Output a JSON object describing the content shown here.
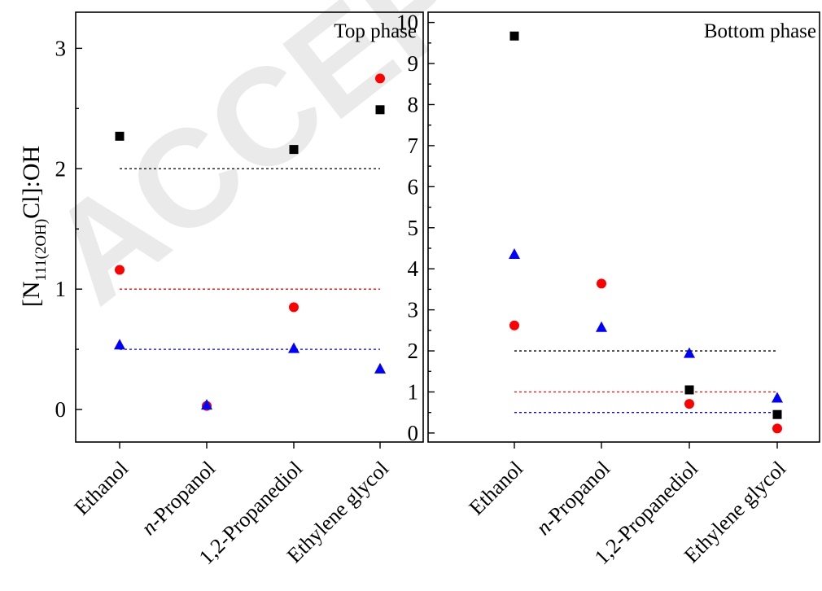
{
  "watermark": "ACCEPTED",
  "ylabel": {
    "pre": "[N",
    "sub": "111(2OH)",
    "post": "Cl]:OH"
  },
  "series_styles": {
    "square": "#000000",
    "circle": "#ff0000",
    "triangle": "#0000ff"
  },
  "reference_lines": [
    {
      "value": 2,
      "color": "#000000"
    },
    {
      "value": 1,
      "color": "#ff0000"
    },
    {
      "value": 0.5,
      "color": "#0000ff"
    }
  ],
  "chart_data": [
    {
      "type": "scatter",
      "title": "Top phase",
      "legend": "none",
      "categories": [
        "Ethanol",
        "n-Propanol",
        "1,2-Propanediol",
        "Ethylene glycol"
      ],
      "ylim": [
        -0.27,
        3.3
      ],
      "yticks": [
        0,
        1,
        2,
        3
      ],
      "series": [
        {
          "marker": "square",
          "values": [
            2.27,
            null,
            2.16,
            2.49
          ]
        },
        {
          "marker": "circle",
          "values": [
            1.16,
            0.03,
            0.85,
            2.75
          ]
        },
        {
          "marker": "triangle",
          "values": [
            0.54,
            0.04,
            0.51,
            0.34
          ]
        }
      ]
    },
    {
      "type": "scatter",
      "title": "Bottom phase",
      "legend": "none",
      "categories": [
        "Ethanol",
        "n-Propanol",
        "1,2-Propanediol",
        "Ethylene glycol"
      ],
      "ylim": [
        -0.22,
        10.25
      ],
      "yticks": [
        0,
        1,
        2,
        3,
        4,
        5,
        6,
        7,
        8,
        9,
        10
      ],
      "series": [
        {
          "marker": "square",
          "values": [
            9.67,
            null,
            1.05,
            0.45
          ]
        },
        {
          "marker": "circle",
          "values": [
            2.62,
            3.64,
            0.71,
            0.11
          ]
        },
        {
          "marker": "triangle",
          "values": [
            4.36,
            2.58,
            1.95,
            0.86
          ]
        }
      ]
    }
  ]
}
